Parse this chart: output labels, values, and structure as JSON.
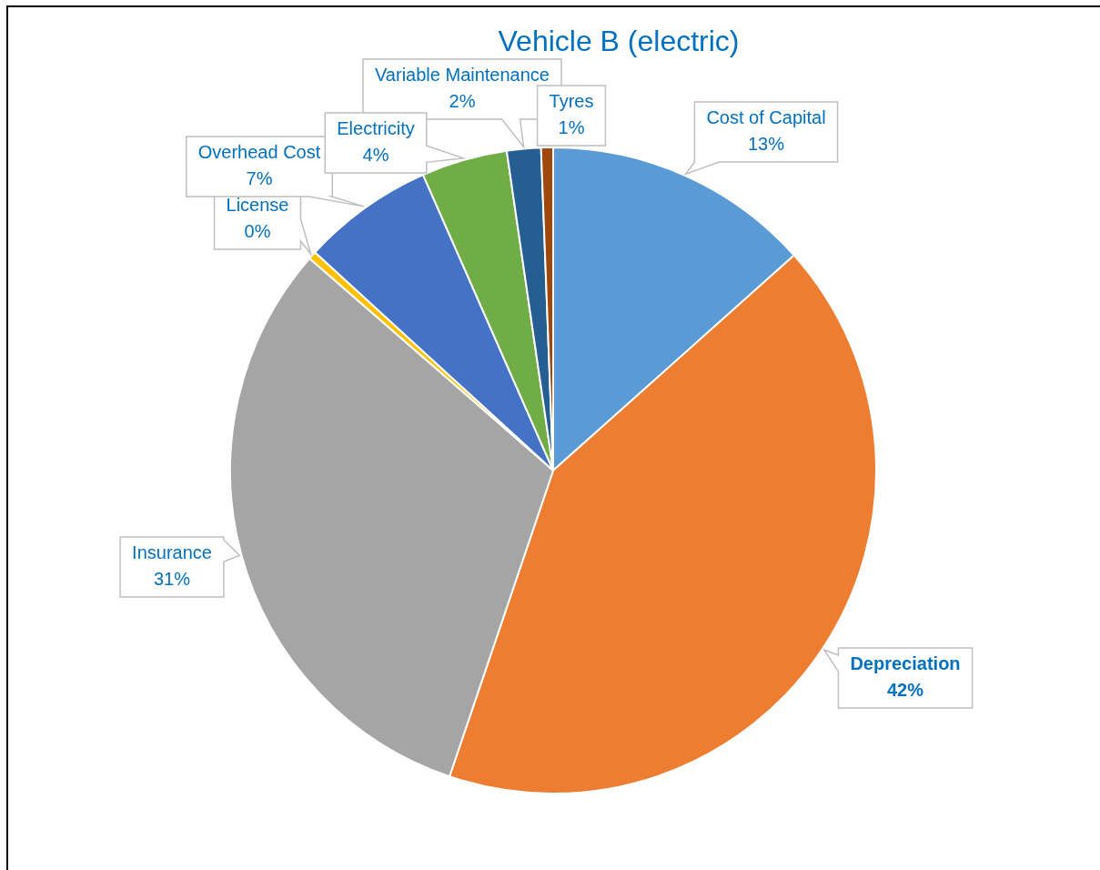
{
  "chart_data": {
    "type": "pie",
    "title": "Vehicle B (electric)",
    "categories": [
      "Cost of Capital",
      "Depreciation",
      "Insurance",
      "License",
      "Overhead Cost",
      "Electricity",
      "Variable Maintenance",
      "Tyres"
    ],
    "values": [
      13.4,
      41.8,
      31.2,
      0.4,
      6.6,
      4.3,
      1.7,
      0.6
    ],
    "colors": [
      "#5b9bd5",
      "#ed7d31",
      "#a5a5a5",
      "#ffc000",
      "#4472c4",
      "#70ad47",
      "#255e91",
      "#9e480e"
    ],
    "value_labels": [
      "13%",
      "42%",
      "31%",
      "0%",
      "7%",
      "4%",
      "2%",
      "1%"
    ]
  }
}
